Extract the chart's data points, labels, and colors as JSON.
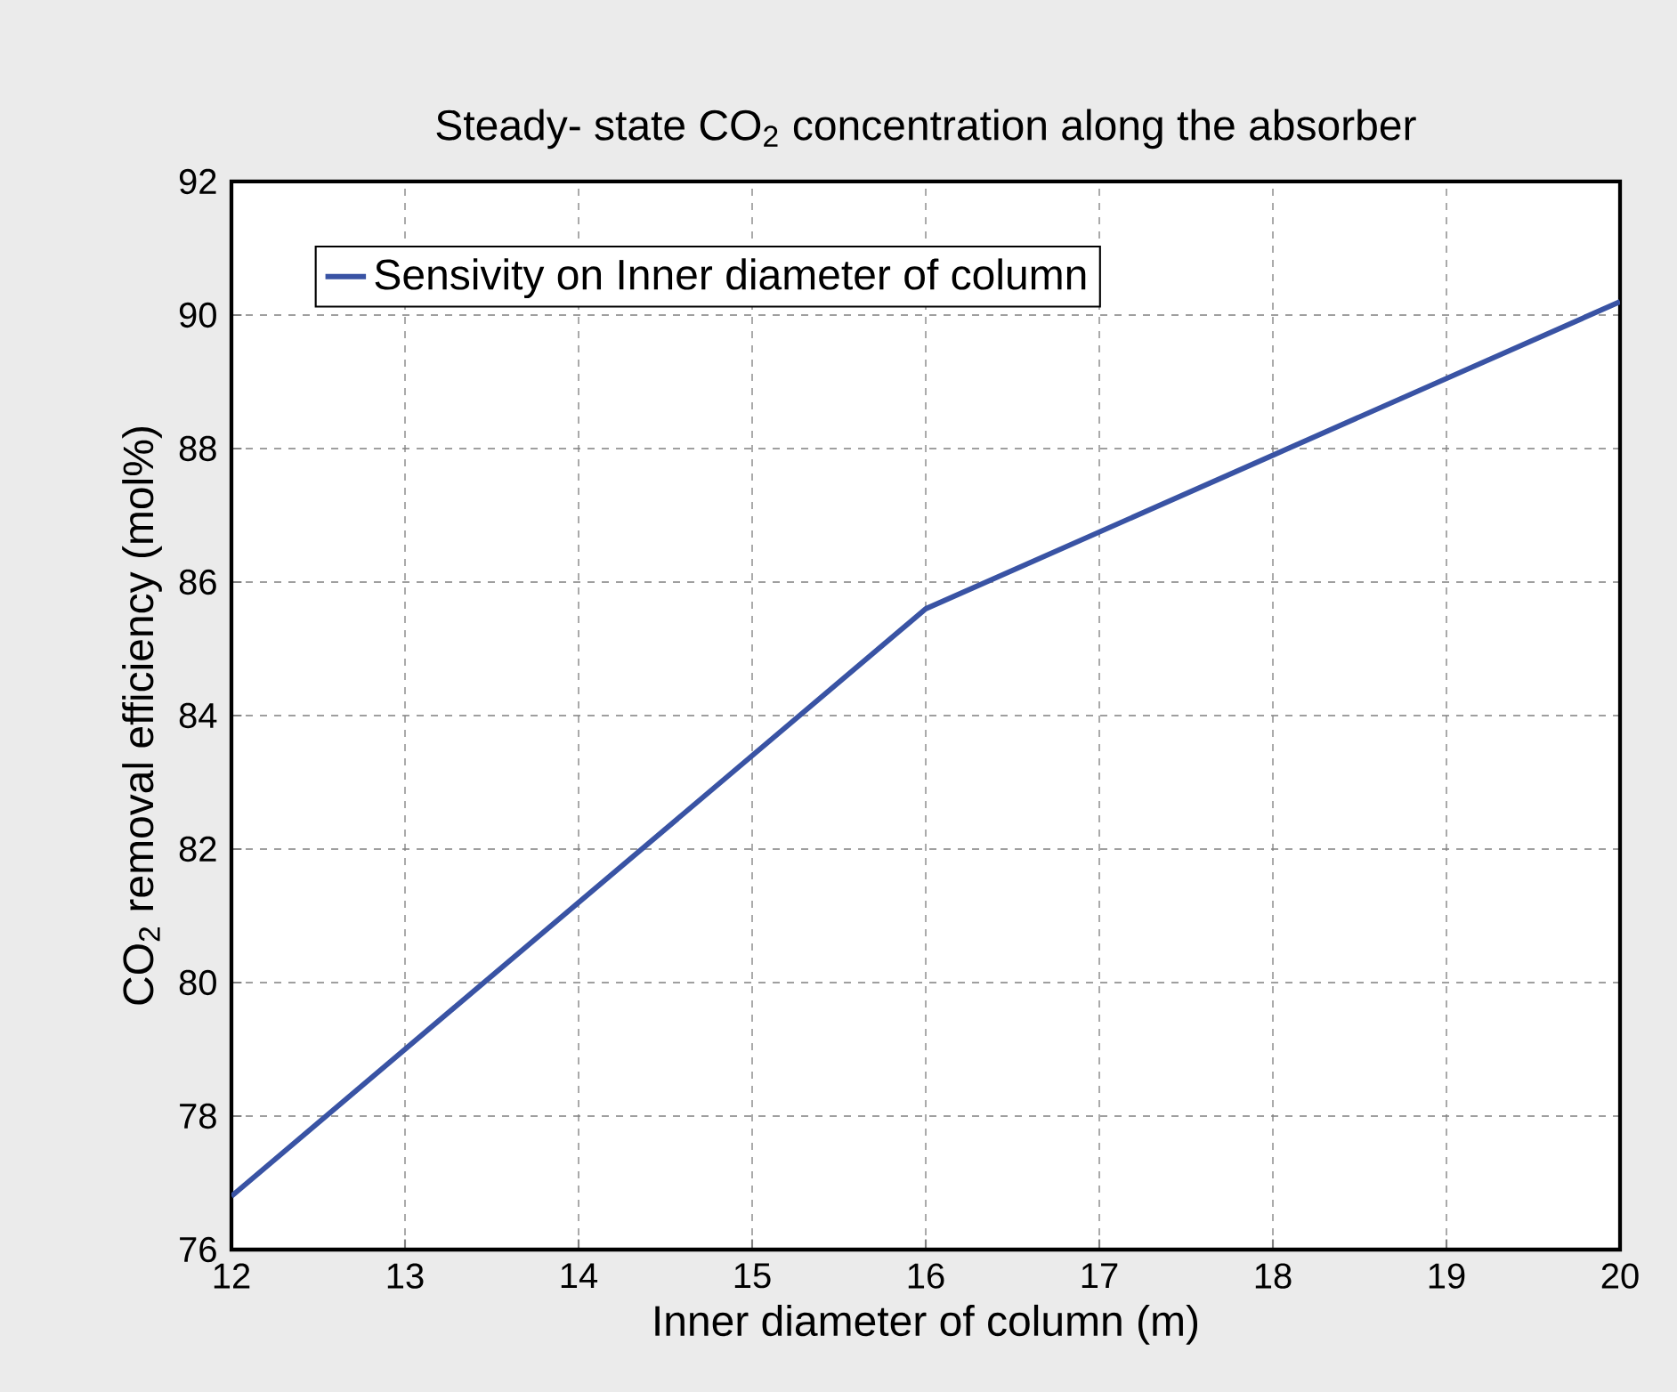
{
  "chart_data": {
    "type": "line",
    "title": "Steady- state CO$_{2}$ concentration along the absorber",
    "xlabel": "Inner diameter of column (m)",
    "ylabel": "CO$_{2}$  removal efficiency (mol%)",
    "x": [
      12,
      14,
      16,
      18,
      20
    ],
    "series": [
      {
        "name": "Sensivity on Inner diameter of column",
        "color": "#3953a4",
        "values": [
          76.8,
          81.2,
          85.6,
          87.9,
          90.2
        ]
      }
    ],
    "xlim": [
      12,
      20
    ],
    "ylim": [
      76,
      92
    ],
    "xticks": [
      12,
      13,
      14,
      15,
      16,
      17,
      18,
      19,
      20
    ],
    "yticks": [
      76,
      78,
      80,
      82,
      84,
      86,
      88,
      90,
      92
    ],
    "grid": true,
    "legend": "top left",
    "marker": "none",
    "line_style": "solid"
  }
}
